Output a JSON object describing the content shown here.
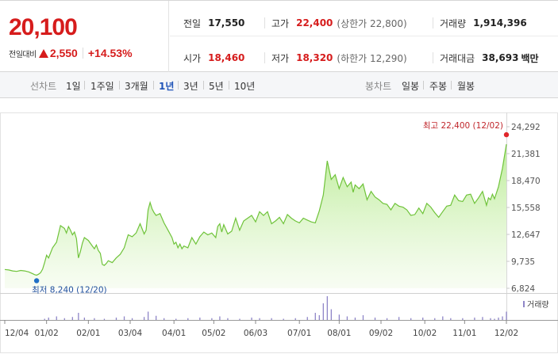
{
  "quote": {
    "price": "20,100",
    "change_label": "전일대비",
    "change_value": "2,550",
    "change_percent": "+14.53%",
    "accent_color": "#d61c1c",
    "stats": {
      "prev_close": {
        "label": "전일",
        "value": "17,550"
      },
      "high": {
        "label": "고가",
        "value": "22,400",
        "sub": "(상한가 22,800)"
      },
      "volume": {
        "label": "거래량",
        "value": "1,914,396"
      },
      "open": {
        "label": "시가",
        "value": "18,460"
      },
      "low": {
        "label": "저가",
        "value": "18,320",
        "sub": "(하한가 12,290)"
      },
      "turnover": {
        "label": "거래대금",
        "value": "38,693",
        "unit": "백만"
      }
    }
  },
  "toolbar": {
    "line_chart_label": "선차트",
    "periods": [
      "1일",
      "1주일",
      "3개월",
      "1년",
      "3년",
      "5년",
      "10년"
    ],
    "active_period": "1년",
    "candle_chart_label": "봉차트",
    "candle_periods": [
      "일봉",
      "주봉",
      "월봉"
    ]
  },
  "chart_data": {
    "type": "area",
    "y_ticks": [
      "24,292",
      "21,381",
      "18,470",
      "15,558",
      "12,647",
      "9,735",
      "6,824"
    ],
    "ylim": [
      6824,
      24292
    ],
    "x_tick_labels": [
      "12/04",
      "01/02",
      "02/01",
      "03/04",
      "04/01",
      "05/02",
      "06/03",
      "07/01",
      "08/01",
      "09/02",
      "10/02",
      "11/01",
      "12/02"
    ],
    "high_annotation": "최고 22,400 (12/02)",
    "low_annotation": "최저 8,240 (12/20)",
    "volume_label": "거래량",
    "line_color": "#6fc33a",
    "high_marker_color": "#e0262b",
    "low_marker_color": "#1f6fc6",
    "series": [
      {
        "x": [
          0,
          2,
          4,
          6,
          8,
          10,
          12,
          13,
          14,
          15,
          16,
          17,
          18,
          19,
          20,
          21,
          22,
          24,
          26,
          28,
          30,
          31,
          32,
          33,
          34,
          35,
          36,
          37,
          38,
          39,
          40,
          42,
          44,
          45,
          46,
          47,
          48,
          49,
          50,
          51,
          52,
          54,
          56,
          58,
          60,
          62,
          64,
          66,
          68,
          70,
          71,
          72,
          73,
          74,
          75,
          76,
          78,
          80,
          82,
          84,
          85,
          86,
          87,
          88,
          89,
          90,
          92,
          94,
          96,
          98,
          100,
          102,
          104,
          106,
          107,
          108,
          109,
          110,
          111,
          112,
          114,
          116,
          118,
          120,
          122,
          124,
          126,
          128,
          130,
          132,
          134,
          136,
          138,
          140,
          142,
          144,
          146,
          148,
          150,
          152,
          154,
          156,
          158,
          160,
          162,
          164,
          166,
          168,
          170,
          172,
          174,
          175,
          176,
          178,
          180,
          182,
          184,
          186,
          188,
          190,
          192,
          194,
          196,
          198,
          200,
          202,
          204,
          206,
          208,
          210,
          212,
          214,
          216,
          218,
          220,
          222,
          224,
          226,
          228,
          230,
          232,
          234,
          236,
          238,
          240,
          242,
          243,
          244,
          245,
          246,
          248,
          250,
          252
        ],
        "y": [
          8850,
          8800,
          8700,
          8650,
          8750,
          8700,
          8600,
          8500,
          8400,
          8300,
          8240,
          8350,
          8500,
          8900,
          9600,
          10400,
          10100,
          11200,
          11800,
          13600,
          13300,
          12800,
          13500,
          13100,
          12600,
          12900,
          12200,
          10100,
          10800,
          11700,
          12300,
          12000,
          11400,
          11100,
          11500,
          10900,
          10600,
          9400,
          9300,
          9500,
          9800,
          9600,
          10100,
          10500,
          11200,
          12600,
          12400,
          12800,
          13800,
          12700,
          13100,
          15300,
          16100,
          15400,
          15000,
          14700,
          14900,
          13900,
          13100,
          12300,
          11600,
          11800,
          11200,
          11600,
          11100,
          11400,
          11200,
          12300,
          11600,
          12400,
          12900,
          12600,
          12800,
          12300,
          13500,
          13800,
          12900,
          13700,
          13200,
          12700,
          13000,
          14400,
          13100,
          14100,
          14400,
          14700,
          14000,
          15100,
          14700,
          15100,
          13800,
          14100,
          14500,
          13800,
          14800,
          14400,
          14100,
          13900,
          14400,
          14200,
          14000,
          13900,
          15200,
          16900,
          20600,
          18600,
          19100,
          17600,
          18800,
          17800,
          18300,
          17200,
          18000,
          17600,
          18100,
          16400,
          17300,
          16700,
          16400,
          16000,
          15900,
          15300,
          16000,
          15700,
          15600,
          15300,
          14700,
          14800,
          15500,
          14900,
          16000,
          15600,
          15000,
          14500,
          15100,
          15700,
          15800,
          16900,
          16300,
          16200,
          16900,
          17000,
          16000,
          16600,
          17300,
          15800,
          16600,
          16400,
          17000,
          16500,
          17800,
          19800,
          22400
        ]
      }
    ],
    "volume": {
      "x": [
        20,
        22,
        26,
        30,
        34,
        37,
        40,
        45,
        50,
        56,
        60,
        64,
        70,
        72,
        76,
        80,
        86,
        92,
        98,
        104,
        108,
        112,
        118,
        124,
        128,
        134,
        140,
        146,
        152,
        156,
        158,
        160,
        162,
        164,
        168,
        172,
        176,
        180,
        186,
        192,
        198,
        204,
        210,
        216,
        220,
        224,
        230,
        236,
        240,
        244,
        246,
        248,
        250,
        252
      ],
      "v": [
        2,
        4,
        6,
        3,
        5,
        12,
        4,
        3,
        2,
        4,
        6,
        3,
        5,
        14,
        7,
        3,
        2,
        3,
        4,
        3,
        6,
        3,
        2,
        4,
        3,
        3,
        2,
        3,
        5,
        12,
        8,
        28,
        40,
        18,
        9,
        6,
        4,
        8,
        4,
        3,
        5,
        3,
        4,
        3,
        6,
        3,
        3,
        4,
        5,
        3,
        2,
        4,
        6,
        14
      ]
    }
  }
}
